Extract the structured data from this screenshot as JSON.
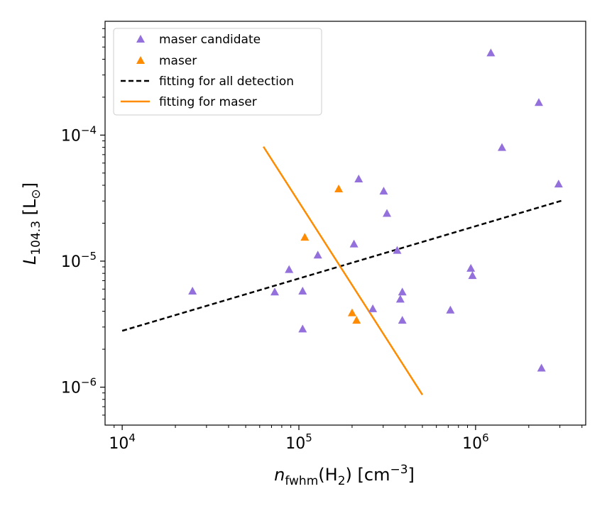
{
  "chart_data": {
    "type": "scatter",
    "xscale": "log",
    "yscale": "log",
    "xlim": [
      8000,
      4200000
    ],
    "ylim": [
      5e-07,
      0.0008
    ],
    "xlabel_main": "n",
    "xlabel_sub": "fwhm",
    "xlabel_rest": "(H",
    "xlabel_h2_sub": "2",
    "xlabel_units": ") [cm",
    "xlabel_exp": "−3",
    "xlabel_close": "]",
    "ylabel_main": "L",
    "ylabel_sub": "104.3",
    "ylabel_units": " [L",
    "ylabel_sun_sub": "⊙",
    "ylabel_close": "]",
    "xticks": [
      {
        "value": 10000,
        "base": "10",
        "exp": "4"
      },
      {
        "value": 100000,
        "base": "10",
        "exp": "5"
      },
      {
        "value": 1000000,
        "base": "10",
        "exp": "6"
      }
    ],
    "yticks": [
      {
        "value": 1e-06,
        "base": "10",
        "exp": "−6"
      },
      {
        "value": 1e-05,
        "base": "10",
        "exp": "−5"
      },
      {
        "value": 0.0001,
        "base": "10",
        "exp": "−4"
      }
    ],
    "series": [
      {
        "name": "maser candidate",
        "kind": "scatter",
        "marker": "triangle",
        "color": "#9370DB",
        "points": [
          [
            25000,
            5.8e-06
          ],
          [
            73000,
            5.7e-06
          ],
          [
            88000,
            8.6e-06
          ],
          [
            105000,
            5.8e-06
          ],
          [
            105000,
            2.9e-06
          ],
          [
            128000,
            1.12e-05
          ],
          [
            205000,
            1.37e-05
          ],
          [
            218000,
            4.5e-05
          ],
          [
            262000,
            4.2e-06
          ],
          [
            302000,
            3.6e-05
          ],
          [
            315000,
            2.4e-05
          ],
          [
            360000,
            1.22e-05
          ],
          [
            375000,
            5e-06
          ],
          [
            385000,
            5.7e-06
          ],
          [
            385000,
            3.4e-06
          ],
          [
            720000,
            4.1e-06
          ],
          [
            940000,
            8.8e-06
          ],
          [
            960000,
            7.7e-06
          ],
          [
            1220000,
            0.00045
          ],
          [
            1410000,
            8e-05
          ],
          [
            2280000,
            0.000182
          ],
          [
            2360000,
            1.42e-06
          ],
          [
            2950000,
            4.1e-05
          ]
        ]
      },
      {
        "name": "maser",
        "kind": "scatter",
        "marker": "triangle",
        "color": "#FF8C00",
        "points": [
          [
            108000,
            1.55e-05
          ],
          [
            168000,
            3.75e-05
          ],
          [
            200000,
            3.9e-06
          ],
          [
            212000,
            3.4e-06
          ]
        ]
      },
      {
        "name": "fitting for all detection",
        "kind": "line",
        "style": "dashed",
        "color": "#000000",
        "points": [
          [
            10000,
            2.8e-06
          ],
          [
            3150000,
            3.05e-05
          ]
        ]
      },
      {
        "name": "fitting for maser",
        "kind": "line",
        "style": "solid",
        "color": "#FF8C00",
        "points": [
          [
            63000,
            8.1e-05
          ],
          [
            500000,
            8.7e-07
          ]
        ]
      }
    ],
    "legend": {
      "placement": "upper-left",
      "entries": [
        "maser candidate",
        "maser",
        "fitting for all detection",
        "fitting for maser"
      ]
    }
  }
}
